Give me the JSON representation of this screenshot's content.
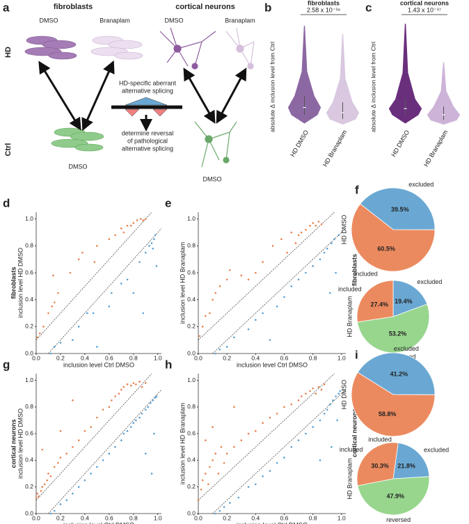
{
  "diagram": {
    "panel": "a",
    "col_left": "fibroblasts",
    "col_right": "cortical neurons",
    "top_labels": [
      "DMSO",
      "Branaplam",
      "DMSO",
      "Branaplam"
    ],
    "row_hd": "HD",
    "row_ctrl": "Ctrl",
    "splicing": [
      "HD-specific aberrant",
      "alternative splicing"
    ],
    "reversal": [
      "determine reversal",
      "of pathological",
      "alternative splicing"
    ],
    "bottom_labels": [
      "DMSO",
      "DMSO"
    ]
  },
  "pie_row_labels": [
    "fibroblasts",
    "cortical neurons"
  ],
  "chart_data": [
    {
      "type": "violin",
      "panel": "b",
      "title": "fibroblasts",
      "subtitle": "2.58 x 10⁻¹⁶",
      "ylabel": "absolute Δ inclusion level from Ctrl",
      "categories": [
        "HD DMSO",
        "HD Branaplam"
      ],
      "colors": [
        "#8c68a3",
        "#d9c8e0"
      ],
      "values": [
        [
          0.02,
          0.1,
          0.17,
          0.28,
          0.95
        ],
        [
          0.01,
          0.06,
          0.12,
          0.22,
          0.87
        ]
      ],
      "ylim": [
        0,
        1
      ]
    },
    {
      "type": "violin",
      "panel": "c",
      "title": "cortical neurons",
      "subtitle": "1.43 x 10⁻¹⁷",
      "ylabel": "absolute Δ inclusion level from Ctrl",
      "categories": [
        "HD DMSO",
        "HD Branaplam"
      ],
      "colors": [
        "#6a2f7c",
        "#cdb3d8"
      ],
      "values": [
        [
          0.02,
          0.1,
          0.16,
          0.25,
          0.97
        ],
        [
          0.01,
          0.05,
          0.1,
          0.18,
          0.6
        ]
      ],
      "ylim": [
        0,
        1
      ]
    },
    {
      "type": "scatter",
      "panel": "d",
      "row_label": "fibroblasts",
      "xlabel": "inclusion level Ctrl DMSO",
      "ylabel": "inclusion level HD DMSO",
      "xlim": [
        0,
        1.03
      ],
      "ylim": [
        0,
        1.05
      ],
      "diagonal_offsets": [
        0.1,
        -0.1
      ],
      "xticks": [
        {
          "value": 0,
          "label": "0.0"
        },
        0.2,
        0.4,
        0.6,
        0.8,
        {
          "value": 1,
          "label": "1.0"
        }
      ],
      "yticks": [
        {
          "value": 0,
          "label": "0.0"
        },
        0.2,
        0.4,
        0.6,
        0.8,
        {
          "value": 1,
          "label": "1.0"
        }
      ],
      "series": [
        {
          "color": "#e8804f",
          "x": [
            0.01,
            0.03,
            0.06,
            0.1,
            0.13,
            0.15,
            0.18,
            0.14,
            0.28,
            0.35,
            0.38,
            0.48,
            0.5,
            0.6,
            0.65,
            0.7,
            0.75,
            0.8,
            0.83,
            0.86,
            0.88,
            0.9,
            0.72,
            0.78
          ],
          "values": [
            0.12,
            0.15,
            0.2,
            0.3,
            0.35,
            0.38,
            0.45,
            0.58,
            0.6,
            0.7,
            0.75,
            0.68,
            0.8,
            0.85,
            0.88,
            0.93,
            0.95,
            0.97,
            0.99,
            1.0,
            0.99,
            1.0,
            0.9,
            0.95
          ]
        },
        {
          "color": "#5aa0d4",
          "x": [
            0.12,
            0.15,
            0.2,
            0.3,
            0.35,
            0.42,
            0.47,
            0.5,
            0.6,
            0.62,
            0.7,
            0.75,
            0.8,
            0.85,
            0.9,
            0.93,
            0.95,
            0.97,
            0.98,
            0.99,
            0.88,
            0.96
          ],
          "values": [
            0.0,
            0.05,
            0.08,
            0.1,
            0.2,
            0.3,
            0.3,
            0.05,
            0.35,
            0.45,
            0.52,
            0.55,
            0.45,
            0.68,
            0.75,
            0.8,
            0.82,
            0.85,
            0.88,
            0.65,
            0.3,
            0.78
          ]
        }
      ]
    },
    {
      "type": "scatter",
      "panel": "e",
      "xlabel": "inclusion level Ctrl DMSO",
      "ylabel": "inclusion level HD Branaplam",
      "xlim": [
        0,
        1.03
      ],
      "ylim": [
        0,
        1.05
      ],
      "diagonal_offsets": [
        0.1,
        -0.1
      ],
      "xticks": [
        {
          "value": 0,
          "label": "0.0"
        },
        0.2,
        0.4,
        0.6,
        0.8,
        {
          "value": 1,
          "label": "1.0"
        }
      ],
      "yticks": [
        {
          "value": 0,
          "label": "0.0"
        },
        0.2,
        0.4,
        0.6,
        0.8,
        {
          "value": 1,
          "label": "1.0"
        }
      ],
      "series": [
        {
          "color": "#e8804f",
          "x": [
            0.01,
            0.03,
            0.05,
            0.08,
            0.1,
            0.12,
            0.15,
            0.2,
            0.22,
            0.3,
            0.35,
            0.4,
            0.45,
            0.52,
            0.58,
            0.62,
            0.68,
            0.72,
            0.75,
            0.78,
            0.8,
            0.82,
            0.84,
            0.86,
            0.7,
            0.65
          ],
          "values": [
            0.13,
            0.2,
            0.28,
            0.3,
            0.4,
            0.45,
            0.5,
            0.55,
            0.62,
            0.58,
            0.55,
            0.6,
            0.68,
            0.8,
            0.85,
            0.75,
            0.82,
            0.9,
            0.92,
            0.95,
            0.97,
            0.95,
            0.98,
            0.96,
            0.88,
            0.9
          ]
        },
        {
          "color": "#5aa0d4",
          "x": [
            0.12,
            0.15,
            0.2,
            0.25,
            0.35,
            0.4,
            0.45,
            0.5,
            0.55,
            0.6,
            0.65,
            0.7,
            0.75,
            0.8,
            0.85,
            0.88,
            0.9,
            0.93,
            0.95,
            0.98,
            0.96,
            0.92
          ],
          "values": [
            0.0,
            0.03,
            0.05,
            0.12,
            0.18,
            0.25,
            0.3,
            0.1,
            0.35,
            0.42,
            0.5,
            0.55,
            0.6,
            0.65,
            0.7,
            0.75,
            0.78,
            0.82,
            0.85,
            0.88,
            0.6,
            0.45
          ]
        }
      ]
    },
    {
      "type": "pie",
      "panel": "f",
      "ylabel": "HD DMSO",
      "start_angle": -52,
      "categories": [
        "excluded",
        "included"
      ],
      "colors": [
        "#6aa8d3",
        "#ec8a5f"
      ],
      "values": [
        39.5,
        60.5
      ],
      "value_labels": [
        "39.5%",
        "60.5%"
      ]
    },
    {
      "type": "pie",
      "ylabel": "HD Branaplam",
      "start_angle": 0,
      "categories": [
        "excluded",
        "reversed",
        "included"
      ],
      "colors": [
        "#6aa8d3",
        "#98d68e",
        "#ec8a5f"
      ],
      "values": [
        19.4,
        53.2,
        27.4
      ],
      "value_labels": [
        "19.4%",
        "53.2%",
        "27.4%"
      ]
    },
    {
      "type": "scatter",
      "panel": "g",
      "row_label": "cortical neurons",
      "xlabel": "inclusion level Ctrl DMSO",
      "ylabel": "inclusion level HD DMSO",
      "xlim": [
        0,
        1.03
      ],
      "ylim": [
        0,
        1.05
      ],
      "diagonal_offsets": [
        0.1,
        -0.1
      ],
      "xticks": [
        {
          "value": 0,
          "label": "0.0"
        },
        0.2,
        0.4,
        0.6,
        0.8,
        {
          "value": 1,
          "label": "1.0"
        }
      ],
      "yticks": [
        {
          "value": 0,
          "label": "0.0"
        },
        0.2,
        0.4,
        0.6,
        0.8,
        {
          "value": 1,
          "label": "1.0"
        }
      ],
      "series": [
        {
          "color": "#e8804f",
          "x": [
            0.0,
            0.01,
            0.02,
            0.04,
            0.05,
            0.07,
            0.09,
            0.1,
            0.12,
            0.15,
            0.18,
            0.2,
            0.25,
            0.3,
            0.35,
            0.4,
            0.45,
            0.5,
            0.55,
            0.6,
            0.62,
            0.65,
            0.68,
            0.7,
            0.72,
            0.75,
            0.78,
            0.8,
            0.82,
            0.85,
            0.87,
            0.9,
            0.05,
            0.2,
            0.3
          ],
          "values": [
            0.12,
            0.15,
            0.13,
            0.17,
            0.2,
            0.22,
            0.25,
            0.3,
            0.28,
            0.35,
            0.38,
            0.42,
            0.45,
            0.5,
            0.55,
            0.62,
            0.65,
            0.72,
            0.78,
            0.8,
            0.85,
            0.88,
            0.9,
            0.93,
            0.95,
            0.97,
            0.96,
            0.98,
            0.97,
            0.99,
            0.95,
            0.98,
            0.48,
            0.62,
            0.85
          ]
        },
        {
          "color": "#5aa0d4",
          "x": [
            0.12,
            0.15,
            0.2,
            0.25,
            0.3,
            0.35,
            0.4,
            0.45,
            0.5,
            0.55,
            0.6,
            0.65,
            0.7,
            0.72,
            0.75,
            0.78,
            0.8,
            0.82,
            0.85,
            0.87,
            0.9,
            0.92,
            0.94,
            0.96,
            0.98,
            0.99,
            0.95,
            0.9,
            0.97
          ],
          "values": [
            0.0,
            0.02,
            0.07,
            0.1,
            0.15,
            0.2,
            0.25,
            0.3,
            0.35,
            0.4,
            0.45,
            0.5,
            0.55,
            0.6,
            0.62,
            0.65,
            0.68,
            0.7,
            0.72,
            0.75,
            0.78,
            0.8,
            0.83,
            0.85,
            0.87,
            0.88,
            0.3,
            0.45,
            0.6
          ]
        }
      ]
    },
    {
      "type": "scatter",
      "panel": "h",
      "xlabel": "inclusion level Ctrl DMSO",
      "ylabel": "inclusion level HD Branaplam",
      "xlim": [
        0,
        1.03
      ],
      "ylim": [
        0,
        1.05
      ],
      "diagonal_offsets": [
        0.1,
        -0.1
      ],
      "xticks": [
        {
          "value": 0,
          "label": "0.0"
        },
        0.2,
        0.4,
        0.6,
        0.8,
        {
          "value": 1,
          "label": "1.0"
        }
      ],
      "yticks": [
        {
          "value": 0,
          "label": "0.0"
        },
        0.2,
        0.4,
        0.6,
        0.8,
        {
          "value": 1,
          "label": "1.0"
        }
      ],
      "series": [
        {
          "color": "#e8804f",
          "x": [
            0.0,
            0.02,
            0.03,
            0.05,
            0.07,
            0.08,
            0.1,
            0.12,
            0.14,
            0.16,
            0.18,
            0.2,
            0.25,
            0.3,
            0.35,
            0.4,
            0.45,
            0.5,
            0.55,
            0.6,
            0.65,
            0.7,
            0.72,
            0.75,
            0.78,
            0.8,
            0.82,
            0.84,
            0.86,
            0.88,
            0.05,
            0.1,
            0.25
          ],
          "values": [
            0.1,
            0.18,
            0.25,
            0.3,
            0.22,
            0.35,
            0.4,
            0.45,
            0.3,
            0.5,
            0.38,
            0.45,
            0.5,
            0.55,
            0.6,
            0.62,
            0.68,
            0.72,
            0.75,
            0.8,
            0.82,
            0.85,
            0.88,
            0.9,
            0.92,
            0.94,
            0.9,
            0.95,
            0.93,
            0.97,
            0.55,
            0.65,
            0.8
          ]
        },
        {
          "color": "#5aa0d4",
          "x": [
            0.12,
            0.15,
            0.18,
            0.22,
            0.28,
            0.35,
            0.4,
            0.45,
            0.5,
            0.55,
            0.6,
            0.65,
            0.7,
            0.75,
            0.8,
            0.85,
            0.88,
            0.9,
            0.92,
            0.94,
            0.96,
            0.98,
            0.99,
            0.97,
            0.93,
            0.85
          ],
          "values": [
            0.0,
            0.02,
            0.05,
            0.08,
            0.12,
            0.2,
            0.22,
            0.28,
            0.32,
            0.38,
            0.42,
            0.5,
            0.55,
            0.6,
            0.65,
            0.7,
            0.75,
            0.78,
            0.82,
            0.85,
            0.88,
            0.9,
            0.92,
            0.7,
            0.5,
            0.4
          ]
        }
      ]
    },
    {
      "type": "pie",
      "panel": "i",
      "ylabel": "HD DMSO",
      "start_angle": -58,
      "categories": [
        "excluded",
        "included"
      ],
      "colors": [
        "#6aa8d3",
        "#ec8a5f"
      ],
      "values": [
        41.2,
        58.8
      ],
      "value_labels": [
        "41.2%",
        "58.8%"
      ]
    },
    {
      "type": "pie",
      "ylabel": "HD Branaplam",
      "start_angle": 8,
      "categories": [
        "excluded",
        "reversed",
        "included"
      ],
      "colors": [
        "#6aa8d3",
        "#98d68e",
        "#ec8a5f"
      ],
      "values": [
        21.8,
        47.9,
        30.3
      ],
      "value_labels": [
        "21.8%",
        "47.9%",
        "30.3%"
      ]
    }
  ]
}
